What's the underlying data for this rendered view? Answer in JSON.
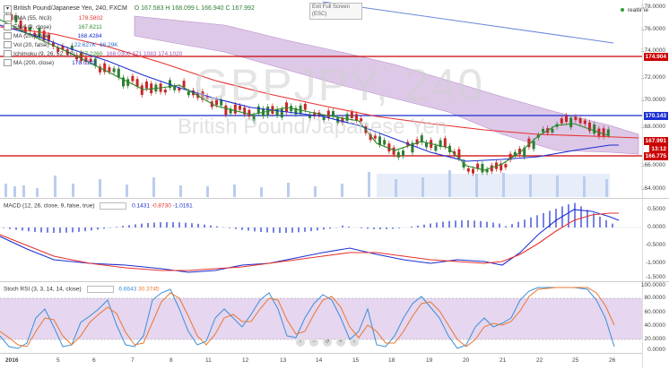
{
  "header": {
    "symbol_title": "British Pound/Japanese Yen, 240, FXCM",
    "ohlc": {
      "o": "O 167.583",
      "h": "H 168.099",
      "l": "L 166.940",
      "c": "C 167.992"
    },
    "exit_fullscreen": "Exit Full Screen",
    "exit_fullscreen_key": "(ESC)",
    "realtime_label": "realtime"
  },
  "watermark": {
    "ticker": "GBPJPY, 240",
    "name": "British Pound/Japanese Yen"
  },
  "indicators": [
    {
      "label": "EMA (55, hlc3)",
      "value": "178.5802",
      "color": "#e8312f"
    },
    {
      "label": "EMA (9, close)",
      "value": "167.6211",
      "color": "#2a8a2a"
    },
    {
      "label": "MA (20, close)",
      "value": "168.4284",
      "color": "#1c2fd1"
    },
    {
      "label": "Vol (20, false)",
      "value": "22.627K",
      "value2": "66.29K",
      "color": "#2a6ad1"
    },
    {
      "label": "Ichimoku (9, 26, 52, 26)",
      "value": "167.2260",
      "value2": "168.0300 171.1083 174.1020",
      "color": "#9b59b6"
    },
    {
      "label": "MA (200, close)",
      "value": "178.0102",
      "color": "#1c2fd1"
    }
  ],
  "price_axis": {
    "labels": [
      "178.0000",
      "176.0000",
      "174.0000",
      "172.0000",
      "170.0000",
      "168.0000",
      "166.0000",
      "164.0000"
    ],
    "tags": [
      {
        "text": "174.904",
        "color": "#cc0000"
      },
      {
        "text": "170.143",
        "color": "#1c2fd1"
      },
      {
        "text": "167.991",
        "color": "#cc0000"
      },
      {
        "text": "13:12",
        "color": "#cc0000"
      },
      {
        "text": "166.775",
        "color": "#cc0000"
      }
    ]
  },
  "macd_panel": {
    "title": "MACD (12, 26, close, 9, false, true)",
    "values": [
      "0.1431",
      "-0.8730",
      "-1.0161"
    ],
    "axis": [
      "0.5000",
      "0.0000",
      "-0.5000",
      "-1.0000",
      "-1.5000"
    ]
  },
  "stoch_panel": {
    "title": "Stoch RSI (3, 3, 14, 14, close)",
    "values": [
      "6.6643",
      "30.3745"
    ],
    "axis": [
      "100.0000",
      "80.0000",
      "60.0000",
      "40.0000",
      "20.0000",
      "0.0000"
    ]
  },
  "time_axis": {
    "labels": [
      "2016",
      "5",
      "6",
      "7",
      "8",
      "11",
      "12",
      "13",
      "14",
      "15",
      "18",
      "19",
      "20",
      "21",
      "22",
      "25",
      "26"
    ]
  },
  "colors": {
    "bull": "#2e7d32",
    "bear": "#c62828",
    "cloud": "#d9c2e3",
    "macd": "#1c2fd1",
    "signal": "#e8312f",
    "stoch_bg": "#e6d6f0"
  }
}
